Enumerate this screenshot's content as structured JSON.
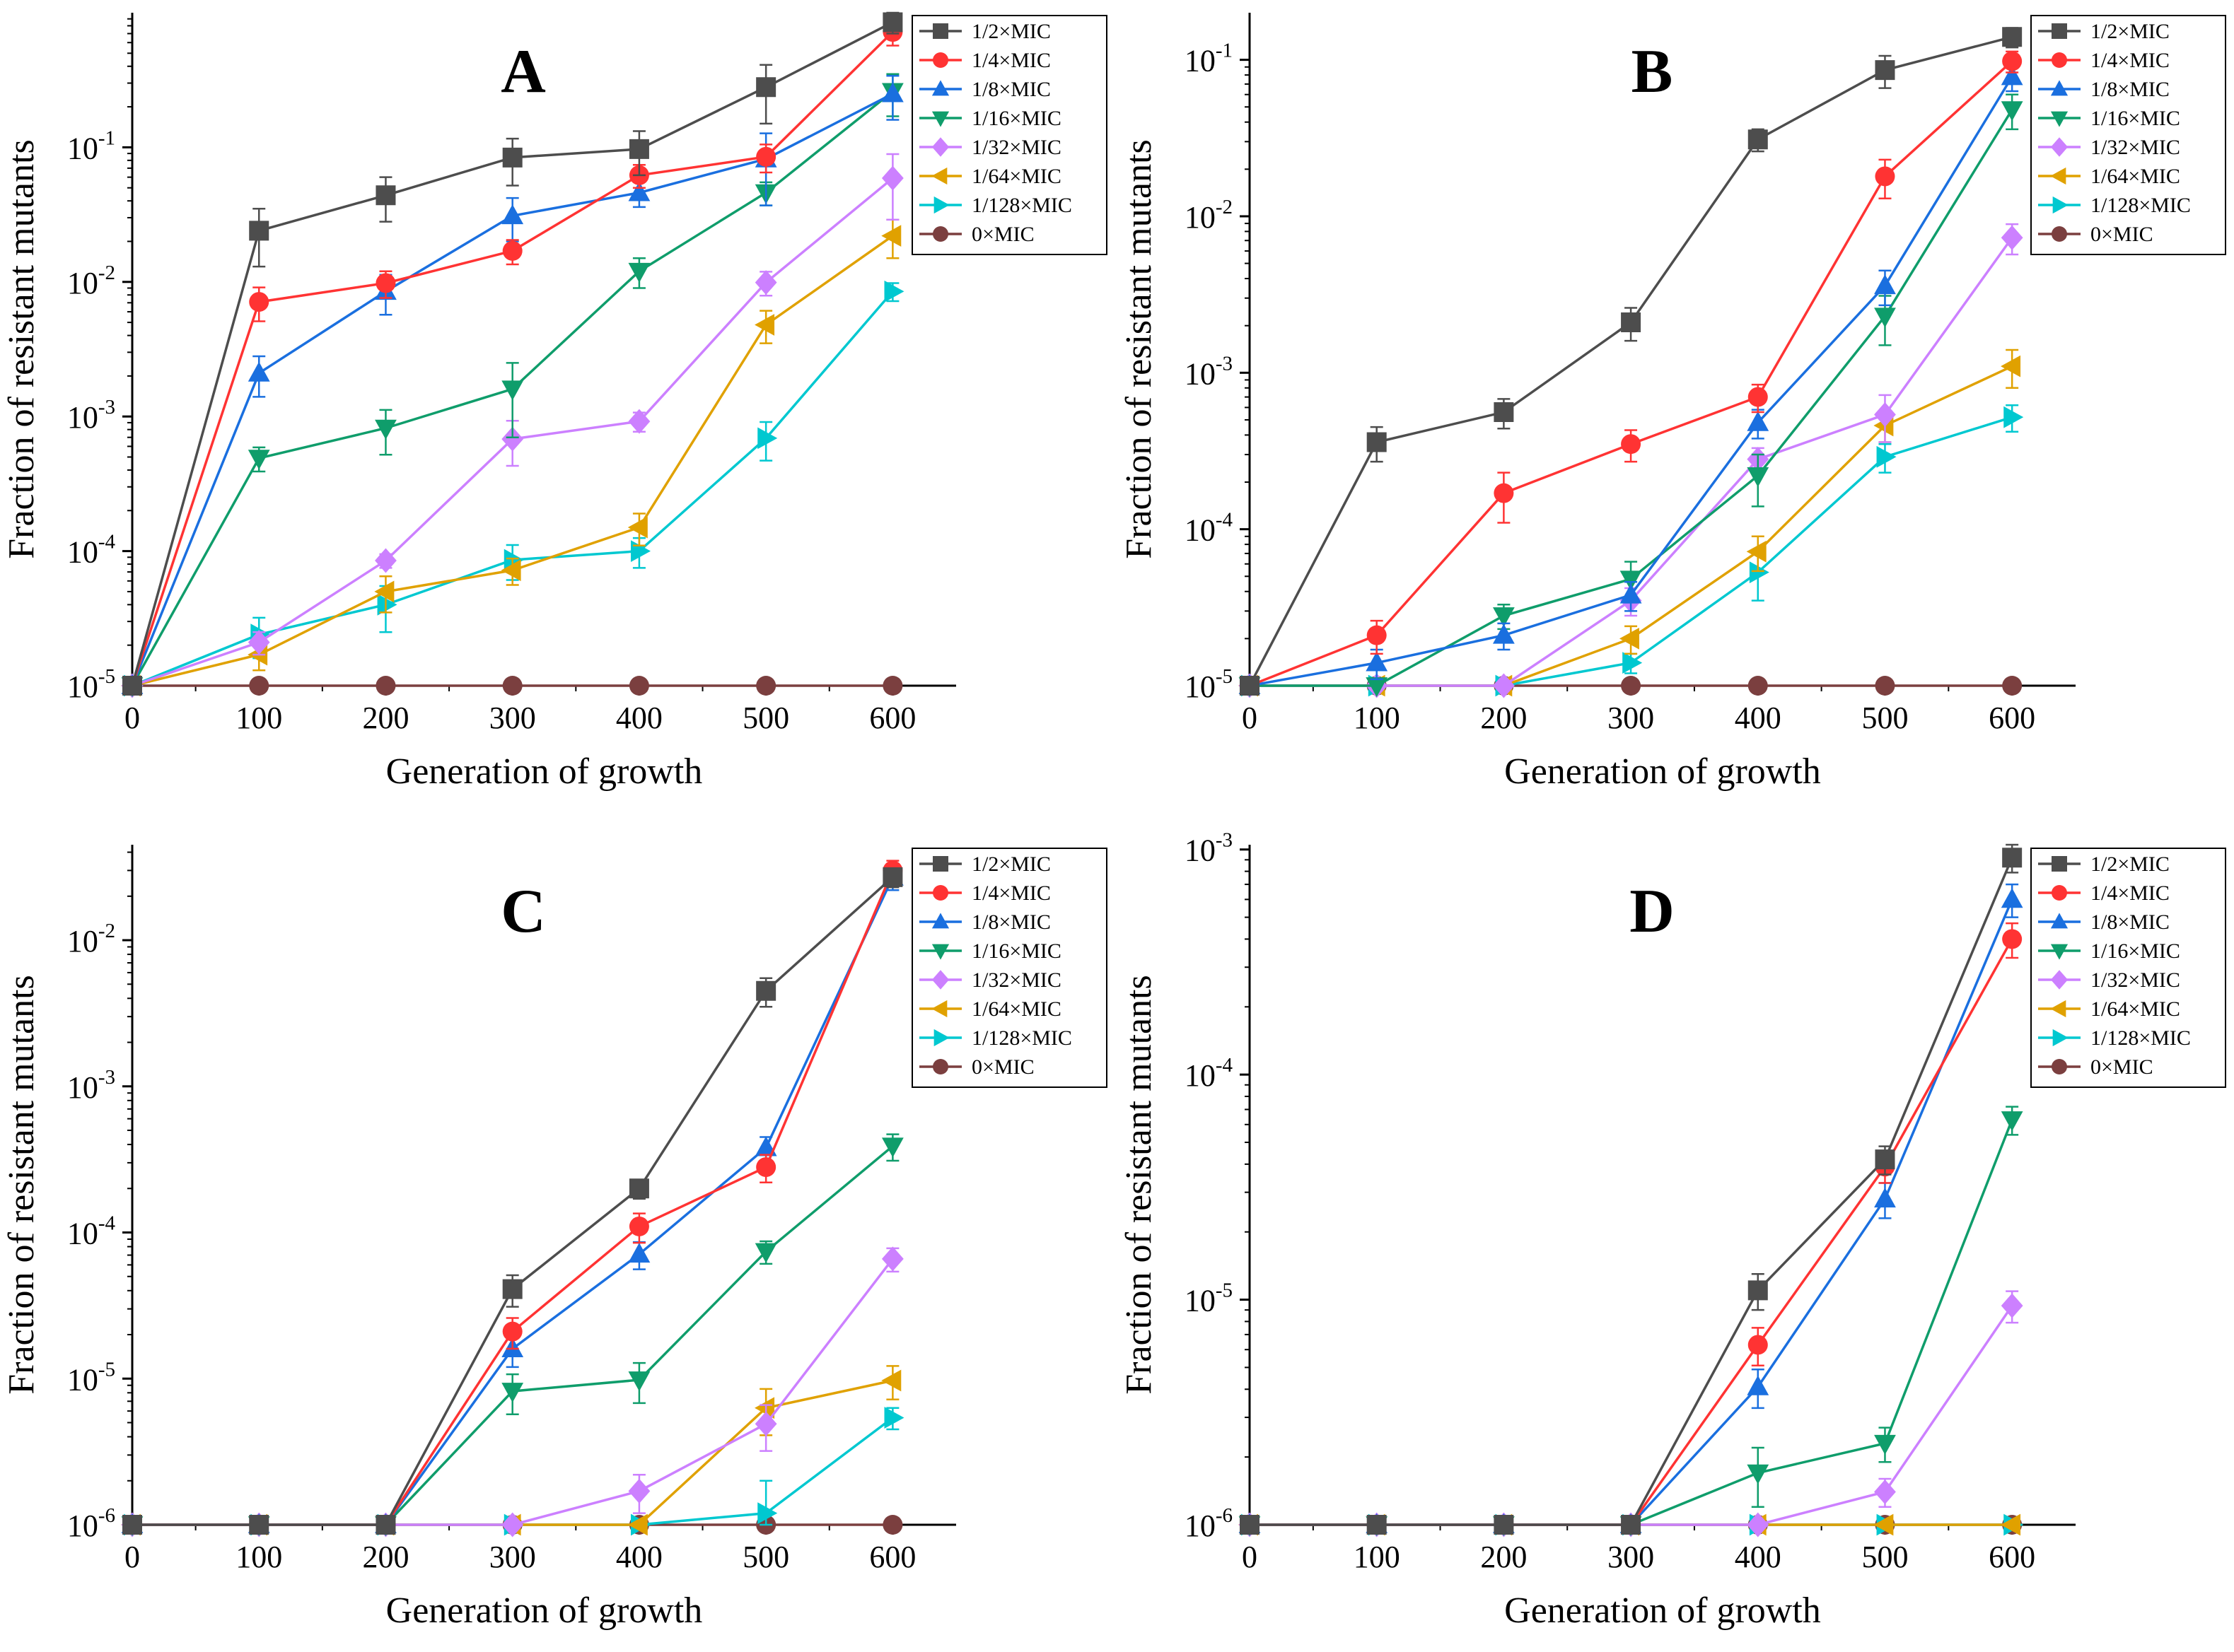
{
  "chart_data": [
    {
      "type": "line",
      "panel": "A",
      "title": "A",
      "xlabel": "Generation of growth",
      "ylabel": "Fraction of resistant mutants",
      "yscale": "log",
      "xlim": [
        0,
        650
      ],
      "ylim": [
        1e-05,
        1
      ],
      "x_ticks": [
        "0",
        "100",
        "200",
        "300",
        "400",
        "500",
        "600"
      ],
      "y_ticks": [
        {
          "base": "10",
          "exp": "-5"
        },
        {
          "base": "10",
          "exp": "-4"
        },
        {
          "base": "10",
          "exp": "-3"
        },
        {
          "base": "10",
          "exp": "-2"
        },
        {
          "base": "10",
          "exp": "-1"
        }
      ],
      "x": [
        0,
        100,
        200,
        300,
        400,
        500,
        600
      ],
      "series": [
        {
          "name": "1/2×MIC",
          "color": "#4d4d4d",
          "marker": "square",
          "values": [
            1e-05,
            0.024,
            0.044,
            0.084,
            0.097,
            0.28,
            0.85
          ],
          "errors": [
            0,
            0.011,
            0.016,
            0.032,
            0.035,
            0.13,
            0.15
          ]
        },
        {
          "name": "1/4×MIC",
          "color": "#ff3333",
          "marker": "circle",
          "values": [
            1e-05,
            0.0071,
            0.0098,
            0.017,
            0.062,
            0.085,
            0.72
          ],
          "errors": [
            0,
            0.002,
            0.0022,
            0.0035,
            0.012,
            0.02,
            0.15
          ]
        },
        {
          "name": "1/8×MIC",
          "color": "#1a6fdf",
          "marker": "triangle-up",
          "values": [
            1e-05,
            0.0021,
            0.0085,
            0.031,
            0.046,
            0.082,
            0.25
          ],
          "errors": [
            0,
            0.0007,
            0.0028,
            0.011,
            0.01,
            0.045,
            0.09
          ]
        },
        {
          "name": "1/16×MIC",
          "color": "#0f9d6b",
          "marker": "triangle-down",
          "values": [
            1e-05,
            0.00049,
            0.00082,
            0.0016,
            0.012,
            0.046,
            0.26
          ],
          "errors": [
            0,
            0.0001,
            0.0003,
            0.0009,
            0.003,
            0.009,
            0.09
          ]
        },
        {
          "name": "1/32×MIC",
          "color": "#cc80ff",
          "marker": "diamond",
          "values": [
            1e-05,
            2.1e-05,
            8.5e-05,
            0.00068,
            0.00092,
            0.0099,
            0.059
          ],
          "errors": [
            0,
            4e-06,
            1e-05,
            0.00025,
            0.00015,
            0.002,
            0.03
          ]
        },
        {
          "name": "1/64×MIC",
          "color": "#e0a100",
          "marker": "triangle-left",
          "values": [
            1e-05,
            1.7e-05,
            5e-05,
            7.2e-05,
            0.00015,
            0.0048,
            0.022
          ],
          "errors": [
            0,
            4e-06,
            1.5e-05,
            1.6e-05,
            4e-05,
            0.0013,
            0.007
          ]
        },
        {
          "name": "1/128×MIC",
          "color": "#00c8d0",
          "marker": "triangle-right",
          "values": [
            1e-05,
            2.4e-05,
            4e-05,
            8.6e-05,
            0.0001,
            0.00069,
            0.0085
          ],
          "errors": [
            0,
            8e-06,
            1.5e-05,
            2.5e-05,
            2.5e-05,
            0.00022,
            0.0013
          ]
        },
        {
          "name": "0×MIC",
          "color": "#7b3f3f",
          "marker": "circle",
          "values": [
            1e-05,
            1e-05,
            1e-05,
            1e-05,
            1e-05,
            1e-05,
            1e-05
          ],
          "errors": [
            0,
            0,
            0,
            0,
            0,
            0,
            0
          ]
        }
      ]
    },
    {
      "type": "line",
      "panel": "B",
      "title": "B",
      "xlabel": "Generation of growth",
      "ylabel": "Fraction of resistant mutants",
      "yscale": "log",
      "xlim": [
        0,
        650
      ],
      "ylim": [
        1e-05,
        0.2
      ],
      "x_ticks": [
        "0",
        "100",
        "200",
        "300",
        "400",
        "500",
        "600"
      ],
      "y_ticks": [
        {
          "base": "10",
          "exp": "-5"
        },
        {
          "base": "10",
          "exp": "-4"
        },
        {
          "base": "10",
          "exp": "-3"
        },
        {
          "base": "10",
          "exp": "-2"
        },
        {
          "base": "10",
          "exp": "-1"
        }
      ],
      "x": [
        0,
        100,
        200,
        300,
        400,
        500,
        600
      ],
      "series": [
        {
          "name": "1/2×MIC",
          "color": "#4d4d4d",
          "marker": "square",
          "values": [
            1e-05,
            0.00036,
            0.00056,
            0.0021,
            0.031,
            0.086,
            0.14
          ],
          "errors": [
            0,
            9e-05,
            0.00012,
            0.0005,
            0.005,
            0.02,
            0.02
          ]
        },
        {
          "name": "1/4×MIC",
          "color": "#ff3333",
          "marker": "circle",
          "values": [
            1e-05,
            2.1e-05,
            0.00017,
            0.00035,
            0.0007,
            0.018,
            0.098
          ],
          "errors": [
            0,
            5e-06,
            6e-05,
            8e-05,
            0.00014,
            0.005,
            0.015
          ]
        },
        {
          "name": "1/8×MIC",
          "color": "#1a6fdf",
          "marker": "triangle-up",
          "values": [
            1e-05,
            1.4e-05,
            2.1e-05,
            3.8e-05,
            0.00048,
            0.0036,
            0.078
          ],
          "errors": [
            0,
            3e-06,
            4e-06,
            8e-06,
            0.0001,
            0.0009,
            0.015
          ]
        },
        {
          "name": "1/16×MIC",
          "color": "#0f9d6b",
          "marker": "triangle-down",
          "values": [
            1e-05,
            1e-05,
            2.8e-05,
            4.8e-05,
            0.00022,
            0.0023,
            0.048
          ],
          "errors": [
            0,
            0,
            5e-06,
            1.4e-05,
            8e-05,
            0.0008,
            0.012
          ]
        },
        {
          "name": "1/32×MIC",
          "color": "#cc80ff",
          "marker": "diamond",
          "values": [
            1e-05,
            1e-05,
            1e-05,
            3.5e-05,
            0.00028,
            0.00054,
            0.0073
          ],
          "errors": [
            0,
            0,
            0,
            7e-06,
            5e-05,
            0.00018,
            0.0016
          ]
        },
        {
          "name": "1/64×MIC",
          "color": "#e0a100",
          "marker": "triangle-left",
          "values": [
            1e-05,
            1e-05,
            1e-05,
            2e-05,
            7.2e-05,
            0.00046,
            0.0011
          ],
          "errors": [
            0,
            0,
            0,
            4e-06,
            1.8e-05,
            0.0001,
            0.0003
          ]
        },
        {
          "name": "1/128×MIC",
          "color": "#00c8d0",
          "marker": "triangle-right",
          "values": [
            1e-05,
            1e-05,
            1e-05,
            1.4e-05,
            5.3e-05,
            0.00029,
            0.00052
          ],
          "errors": [
            0,
            0,
            0,
            2e-06,
            1.8e-05,
            6e-05,
            0.0001
          ]
        },
        {
          "name": "0×MIC",
          "color": "#7b3f3f",
          "marker": "circle",
          "values": [
            1e-05,
            1e-05,
            1e-05,
            1e-05,
            1e-05,
            1e-05,
            1e-05
          ],
          "errors": [
            0,
            0,
            0,
            0,
            0,
            0,
            0
          ]
        }
      ]
    },
    {
      "type": "line",
      "panel": "C",
      "title": "C",
      "xlabel": "Generation of growth",
      "ylabel": "Fraction of resistant mutants",
      "yscale": "log",
      "xlim": [
        0,
        650
      ],
      "ylim": [
        1e-06,
        0.045
      ],
      "x_ticks": [
        "0",
        "100",
        "200",
        "300",
        "400",
        "500",
        "600"
      ],
      "y_ticks": [
        {
          "base": "10",
          "exp": "-6"
        },
        {
          "base": "10",
          "exp": "-5"
        },
        {
          "base": "10",
          "exp": "-4"
        },
        {
          "base": "10",
          "exp": "-3"
        },
        {
          "base": "10",
          "exp": "-2"
        }
      ],
      "x": [
        0,
        100,
        200,
        300,
        400,
        500,
        600
      ],
      "series": [
        {
          "name": "1/2×MIC",
          "color": "#4d4d4d",
          "marker": "square",
          "values": [
            1e-06,
            1e-06,
            1e-06,
            4.1e-05,
            0.0002,
            0.0045,
            0.027
          ],
          "errors": [
            0,
            0,
            0,
            1e-05,
            3e-05,
            0.001,
            0.004
          ]
        },
        {
          "name": "1/4×MIC",
          "color": "#ff3333",
          "marker": "circle",
          "values": [
            1e-06,
            1e-06,
            1e-06,
            2.1e-05,
            0.00011,
            0.00028,
            0.03
          ],
          "errors": [
            0,
            0,
            0,
            5e-06,
            2.5e-05,
            6e-05,
            0.005
          ]
        },
        {
          "name": "1/8×MIC",
          "color": "#1a6fdf",
          "marker": "triangle-up",
          "values": [
            1e-06,
            1e-06,
            1e-06,
            1.6e-05,
            7.1e-05,
            0.00038,
            0.027
          ],
          "errors": [
            0,
            0,
            0,
            4e-06,
            1.5e-05,
            7e-05,
            0.005
          ]
        },
        {
          "name": "1/16×MIC",
          "color": "#0f9d6b",
          "marker": "triangle-down",
          "values": [
            1e-06,
            1e-06,
            1e-06,
            8.2e-06,
            9.8e-06,
            7.4e-05,
            0.00039
          ],
          "errors": [
            0,
            0,
            0,
            2.5e-06,
            3e-06,
            1.3e-05,
            8e-05
          ]
        },
        {
          "name": "1/32×MIC",
          "color": "#cc80ff",
          "marker": "diamond",
          "values": [
            1e-06,
            1e-06,
            1e-06,
            1e-06,
            1.7e-06,
            4.9e-06,
            6.6e-05
          ],
          "errors": [
            0,
            0,
            0,
            0,
            5e-07,
            1.7e-06,
            1.2e-05
          ]
        },
        {
          "name": "1/64×MIC",
          "color": "#e0a100",
          "marker": "triangle-left",
          "values": [
            1e-06,
            1e-06,
            1e-06,
            1e-06,
            1e-06,
            6.3e-06,
            9.7e-06
          ],
          "errors": [
            0,
            0,
            0,
            0,
            0,
            2.2e-06,
            2.5e-06
          ]
        },
        {
          "name": "1/128×MIC",
          "color": "#00c8d0",
          "marker": "triangle-right",
          "values": [
            1e-06,
            1e-06,
            1e-06,
            1e-06,
            1e-06,
            1.2e-06,
            5.4e-06
          ],
          "errors": [
            0,
            0,
            0,
            0,
            0,
            8e-07,
            9e-07
          ]
        },
        {
          "name": "0×MIC",
          "color": "#7b3f3f",
          "marker": "circle",
          "values": [
            1e-06,
            1e-06,
            1e-06,
            1e-06,
            1e-06,
            1e-06,
            1e-06
          ],
          "errors": [
            0,
            0,
            0,
            0,
            0,
            0,
            0
          ]
        }
      ]
    },
    {
      "type": "line",
      "panel": "D",
      "title": "D",
      "xlabel": "Generation of growth",
      "ylabel": "Fraction of resistant mutants",
      "yscale": "log",
      "xlim": [
        0,
        650
      ],
      "ylim": [
        1e-06,
        0.00105
      ],
      "x_ticks": [
        "0",
        "100",
        "200",
        "300",
        "400",
        "500",
        "600"
      ],
      "y_ticks": [
        {
          "base": "10",
          "exp": "-6"
        },
        {
          "base": "10",
          "exp": "-5"
        },
        {
          "base": "10",
          "exp": "-4"
        },
        {
          "base": "10",
          "exp": "-3"
        }
      ],
      "x": [
        0,
        100,
        200,
        300,
        400,
        500,
        600
      ],
      "series": [
        {
          "name": "1/2×MIC",
          "color": "#4d4d4d",
          "marker": "square",
          "values": [
            1e-06,
            1e-06,
            1e-06,
            1e-06,
            1.1e-05,
            4.2e-05,
            0.00092
          ],
          "errors": [
            0,
            0,
            0,
            0,
            2e-06,
            6e-06,
            0.00013
          ]
        },
        {
          "name": "1/4×MIC",
          "color": "#ff3333",
          "marker": "circle",
          "values": [
            1e-06,
            1e-06,
            1e-06,
            1e-06,
            6.3e-06,
            3.9e-05,
            0.0004
          ],
          "errors": [
            0,
            0,
            0,
            0,
            1.2e-06,
            6e-06,
            7e-05
          ]
        },
        {
          "name": "1/8×MIC",
          "color": "#1a6fdf",
          "marker": "triangle-up",
          "values": [
            1e-06,
            1e-06,
            1e-06,
            1e-06,
            4.1e-06,
            2.8e-05,
            0.0006
          ],
          "errors": [
            0,
            0,
            0,
            0,
            8e-07,
            5e-06,
            0.0001
          ]
        },
        {
          "name": "1/16×MIC",
          "color": "#0f9d6b",
          "marker": "triangle-down",
          "values": [
            1e-06,
            1e-06,
            1e-06,
            1e-06,
            1.7e-06,
            2.3e-06,
            6.3e-05
          ],
          "errors": [
            0,
            0,
            0,
            0,
            5e-07,
            4e-07,
            9e-06
          ]
        },
        {
          "name": "1/32×MIC",
          "color": "#cc80ff",
          "marker": "diamond",
          "values": [
            1e-06,
            1e-06,
            1e-06,
            1e-06,
            1e-06,
            1.4e-06,
            9.4e-06
          ],
          "errors": [
            0,
            0,
            0,
            0,
            0,
            2e-07,
            1.5e-06
          ]
        },
        {
          "name": "1/64×MIC",
          "color": "#e0a100",
          "marker": "triangle-left",
          "values": [
            1e-06,
            1e-06,
            1e-06,
            1e-06,
            1e-06,
            1e-06,
            1e-06
          ],
          "errors": [
            0,
            0,
            0,
            0,
            0,
            0,
            0
          ]
        },
        {
          "name": "1/128×MIC",
          "color": "#00c8d0",
          "marker": "triangle-right",
          "values": [
            1e-06,
            1e-06,
            1e-06,
            1e-06,
            1e-06,
            1e-06,
            1e-06
          ],
          "errors": [
            0,
            0,
            0,
            0,
            0,
            0,
            0
          ]
        },
        {
          "name": "0×MIC",
          "color": "#7b3f3f",
          "marker": "circle",
          "values": [
            1e-06,
            1e-06,
            1e-06,
            1e-06,
            1e-06,
            1e-06,
            1e-06
          ],
          "errors": [
            0,
            0,
            0,
            0,
            0,
            0,
            0
          ]
        }
      ]
    }
  ]
}
